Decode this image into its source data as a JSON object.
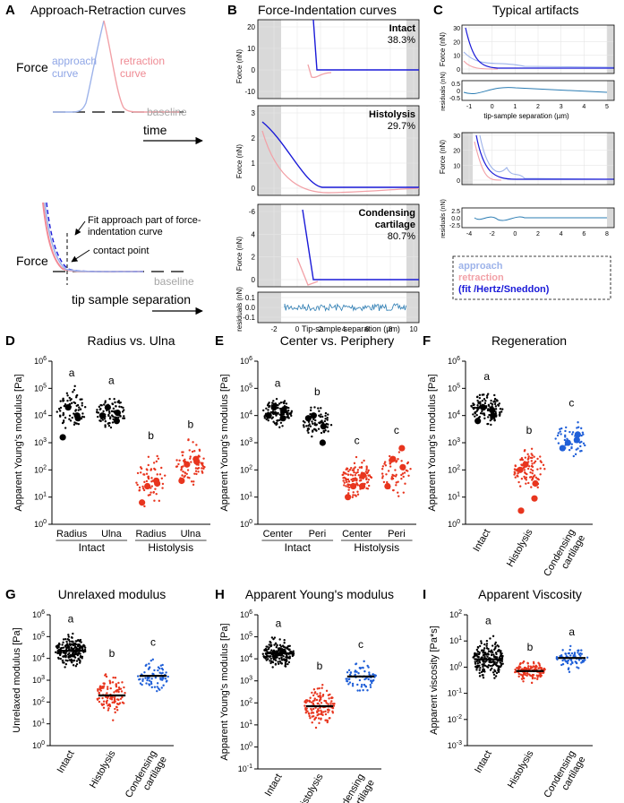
{
  "colors": {
    "black": "#000000",
    "red": "#e8351e",
    "blue": "#1f5fd8",
    "approach": "#9db3ea",
    "retraction": "#f2a1a7",
    "fit": "#1a1ad8",
    "resid": "#2b7cb3",
    "grey": "#d9d9d9",
    "baseline": "#a6a6a6"
  },
  "panel_letters": {
    "A": "A",
    "B": "B",
    "C": "C",
    "D": "D",
    "E": "E",
    "F": "F",
    "G": "G",
    "H": "H",
    "I": "I"
  },
  "panelA": {
    "title": "Approach-Retraction curves",
    "approach_label": "approach\ncurve",
    "retraction_label": "retraction\ncurve",
    "baseline": "baseline",
    "y_label": "Force",
    "x_label": "time",
    "fit_note": "Fit approach part of force-\nindentation curve",
    "contact_point": "contact point",
    "baseline2": "baseline",
    "y_label2": "Force",
    "x_label2": "tip sample separation"
  },
  "panelB": {
    "title": "Force-Indentation curves",
    "panels": [
      {
        "label": "Intact",
        "pct": "38.3%",
        "yticks": [
          "20",
          "10",
          "0",
          "-10"
        ]
      },
      {
        "label": "Histolysis",
        "pct": "29.7%",
        "yticks": [
          "3",
          "2",
          "1",
          "0"
        ]
      },
      {
        "label": "Condensing\ncartilage",
        "pct": "80.7%",
        "yticks": [
          "-6",
          "4",
          "2",
          "0"
        ]
      }
    ],
    "y_axis": "Force (nN)",
    "resid_axis": "residuals (nN)",
    "resid_ticks": [
      "0.1",
      "0.0",
      "-0.1"
    ],
    "x_ticks": [
      "-2",
      "0",
      "2",
      "4",
      "6",
      "8",
      "10"
    ],
    "x_axis": "Tip-sample separation (µm)"
  },
  "panelC": {
    "title": "Typical artifacts",
    "y_axis": "Force (nN)",
    "resid_axis": "residuals (nN)",
    "top_yticks": [
      "30",
      "20",
      "10",
      "0"
    ],
    "top_resid": [
      "0.5",
      "0",
      "-0.5"
    ],
    "top_xticks": [
      "-1",
      "0",
      "1",
      "2",
      "3",
      "4",
      "5"
    ],
    "x_axis": "tip-sample separation (µm)",
    "bot_yticks": [
      "30",
      "20",
      "10",
      "0"
    ],
    "bot_resid": [
      "2.5",
      "0.0",
      "-2.5"
    ],
    "bot_xticks": [
      "-4",
      "-2",
      "0",
      "2",
      "4",
      "6",
      "8"
    ],
    "legend": [
      "approach",
      "retraction",
      "(fit /Hertz/Sneddon)"
    ]
  },
  "chart_data": [
    {
      "id": "D",
      "type": "scatter",
      "title": "Radius vs. Ulna",
      "ylabel": "Apparent Young's modulus [Pa]",
      "ylim_log10": [
        0,
        6
      ],
      "yticks": [
        "10^0",
        "10^1",
        "10^2",
        "10^3",
        "10^4",
        "10^5",
        "10^6"
      ],
      "categories": [
        "Radius",
        "Ulna",
        "Radius",
        "Ulna"
      ],
      "groups": [
        "Intact",
        "Histolysis"
      ],
      "letters": [
        "a",
        "a",
        "b",
        "b"
      ],
      "centers_log10": [
        4.2,
        4.1,
        1.6,
        2.2
      ],
      "spread": [
        0.55,
        0.45,
        0.7,
        0.6
      ],
      "n": [
        70,
        80,
        60,
        75
      ],
      "highlights": [
        [
          4.3,
          3.9,
          3.2,
          4.0
        ],
        [
          4.3,
          4.1,
          4.0,
          3.8
        ],
        [
          1.4,
          1.5,
          0.8,
          1.6
        ],
        [
          2.2,
          2.3,
          1.6,
          2.4
        ]
      ],
      "colors": [
        "black",
        "black",
        "red",
        "red"
      ]
    },
    {
      "id": "E",
      "type": "scatter",
      "title": "Center vs. Periphery",
      "ylabel": "Apparent Young's modulus [Pa]",
      "ylim_log10": [
        0,
        6
      ],
      "yticks": [
        "10^0",
        "10^1",
        "10^2",
        "10^3",
        "10^4",
        "10^5",
        "10^6"
      ],
      "categories": [
        "Center",
        "Peri",
        "Center",
        "Peri"
      ],
      "groups": [
        "Intact",
        "Histolysis"
      ],
      "letters": [
        "a",
        "b",
        "c",
        "c"
      ],
      "centers_log10": [
        4.1,
        3.7,
        1.7,
        1.9
      ],
      "spread": [
        0.4,
        0.45,
        0.55,
        0.65
      ],
      "n": [
        110,
        70,
        110,
        60
      ],
      "highlights": [
        [
          4.3,
          4.2,
          4.0,
          3.9
        ],
        [
          4.0,
          3.6,
          3.9,
          3.0
        ],
        [
          1.4,
          1.8,
          1.0,
          1.4
        ],
        [
          2.4,
          2.1,
          1.4,
          2.8
        ]
      ],
      "colors": [
        "black",
        "black",
        "red",
        "red"
      ]
    },
    {
      "id": "F",
      "type": "scatter",
      "title": "Regeneration",
      "ylabel": "Apparent Young's modulus [Pa]",
      "ylim_log10": [
        0,
        6
      ],
      "yticks": [
        "10^0",
        "10^1",
        "10^2",
        "10^3",
        "10^4",
        "10^5",
        "10^6"
      ],
      "categories": [
        "Intact",
        "Histolysis",
        "Condensing\ncartilage"
      ],
      "letters": [
        "a",
        "b",
        "c"
      ],
      "centers_log10": [
        4.25,
        2.0,
        3.1
      ],
      "spread": [
        0.45,
        0.6,
        0.55
      ],
      "n": [
        120,
        90,
        45
      ],
      "highlights": [
        [
          4.3,
          4.0,
          3.8,
          4.2
        ],
        [
          2.2,
          1.5,
          2.0,
          0.95,
          0.5
        ],
        [
          3.0,
          3.3,
          2.8,
          3.1
        ]
      ],
      "colors": [
        "black",
        "red",
        "blue"
      ]
    },
    {
      "id": "G",
      "type": "scatter",
      "title": "Unrelaxed modulus",
      "ylabel": "Unrelaxed modulus [Pa]",
      "ylim_log10": [
        0,
        6
      ],
      "yticks": [
        "10^0",
        "10^1",
        "10^2",
        "10^3",
        "10^4",
        "10^5",
        "10^6"
      ],
      "categories": [
        "Intact",
        "Histolysis",
        "Condensing\ncartilage"
      ],
      "letters": [
        "a",
        "b",
        "c"
      ],
      "centers_log10": [
        4.35,
        2.3,
        3.2
      ],
      "medians_log10": [
        4.35,
        2.3,
        3.2
      ],
      "spread": [
        0.55,
        0.8,
        0.6
      ],
      "n": [
        200,
        110,
        70
      ],
      "colors": [
        "black",
        "red",
        "blue"
      ]
    },
    {
      "id": "H",
      "type": "scatter",
      "title": "Apparent Young's modulus",
      "ylabel": "Apparent Young's modulus [Pa]",
      "ylim_log10": [
        -1,
        6
      ],
      "yticks": [
        "10^-1",
        "10^0",
        "10^1",
        "10^2",
        "10^3",
        "10^4",
        "10^5",
        "10^6"
      ],
      "categories": [
        "Intact",
        "Histolysis",
        "Condensing\ncartilage"
      ],
      "letters": [
        "a",
        "b",
        "c"
      ],
      "centers_log10": [
        4.25,
        1.85,
        3.2
      ],
      "medians_log10": [
        4.25,
        1.85,
        3.2
      ],
      "spread": [
        0.5,
        0.75,
        0.55
      ],
      "n": [
        200,
        130,
        70
      ],
      "colors": [
        "black",
        "red",
        "blue"
      ]
    },
    {
      "id": "I",
      "type": "scatter",
      "title": "Apparent Viscosity",
      "ylabel": "Apparent viscosity [Pa*s]",
      "ylim_log10": [
        -3,
        2
      ],
      "yticks": [
        "10^-3",
        "10^-2",
        "10^-1",
        "10^0",
        "10^1",
        "10^2"
      ],
      "categories": [
        "Intact",
        "Histolysis",
        "Condensing\ncartilage"
      ],
      "letters": [
        "a",
        "b",
        "a"
      ],
      "centers_log10": [
        0.3,
        -0.15,
        0.35
      ],
      "medians_log10": [
        0.3,
        -0.15,
        0.35
      ],
      "spread": [
        0.6,
        0.3,
        0.35
      ],
      "n": [
        200,
        130,
        70
      ],
      "colors": [
        "black",
        "red",
        "blue"
      ]
    }
  ]
}
